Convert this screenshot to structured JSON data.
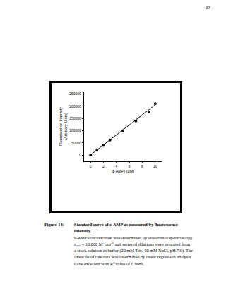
{
  "page_number": "63",
  "chart_data": {
    "type": "scatter",
    "x_label": "[ε-AMP] (μM)",
    "y_label": "Fluorescence Intensity\n(Arbitrary Units)",
    "series": [
      {
        "type": "scatter",
        "marker": "circle",
        "color": "#000000",
        "x": [
          0,
          1,
          2,
          3,
          5,
          7,
          9,
          10
        ],
        "values": [
          0,
          22000,
          40000,
          62000,
          100000,
          140000,
          177000,
          210000
        ]
      },
      {
        "type": "line",
        "line_style": "solid",
        "color": "#000000",
        "x": [
          0,
          10
        ],
        "values": [
          1000,
          206000
        ]
      }
    ],
    "xlim": [
      -1,
      11
    ],
    "xticks": [
      0,
      2,
      4,
      6,
      8,
      10
    ],
    "ylim": [
      -25000,
      260000
    ],
    "yticks": [
      0,
      50000,
      100000,
      150000,
      200000,
      250000
    ],
    "grid": false
  },
  "caption": {
    "label": "Figure 14:",
    "title": "Standard curve of ε-AMP as measured by fluorescence intensity.",
    "text": "ε-AMP concentration was determined by absorbance spectroscopy ε₂₆₅ = 10,000 M⁻¹cm⁻¹ and series of dilutions were prepared from a stock solution in buffer (20 mM Tris, 50 mM NaCl, pH 7.9). The linear fit of this data was determined by linear regression analysis to be excellent with R² value of 0.9989."
  }
}
